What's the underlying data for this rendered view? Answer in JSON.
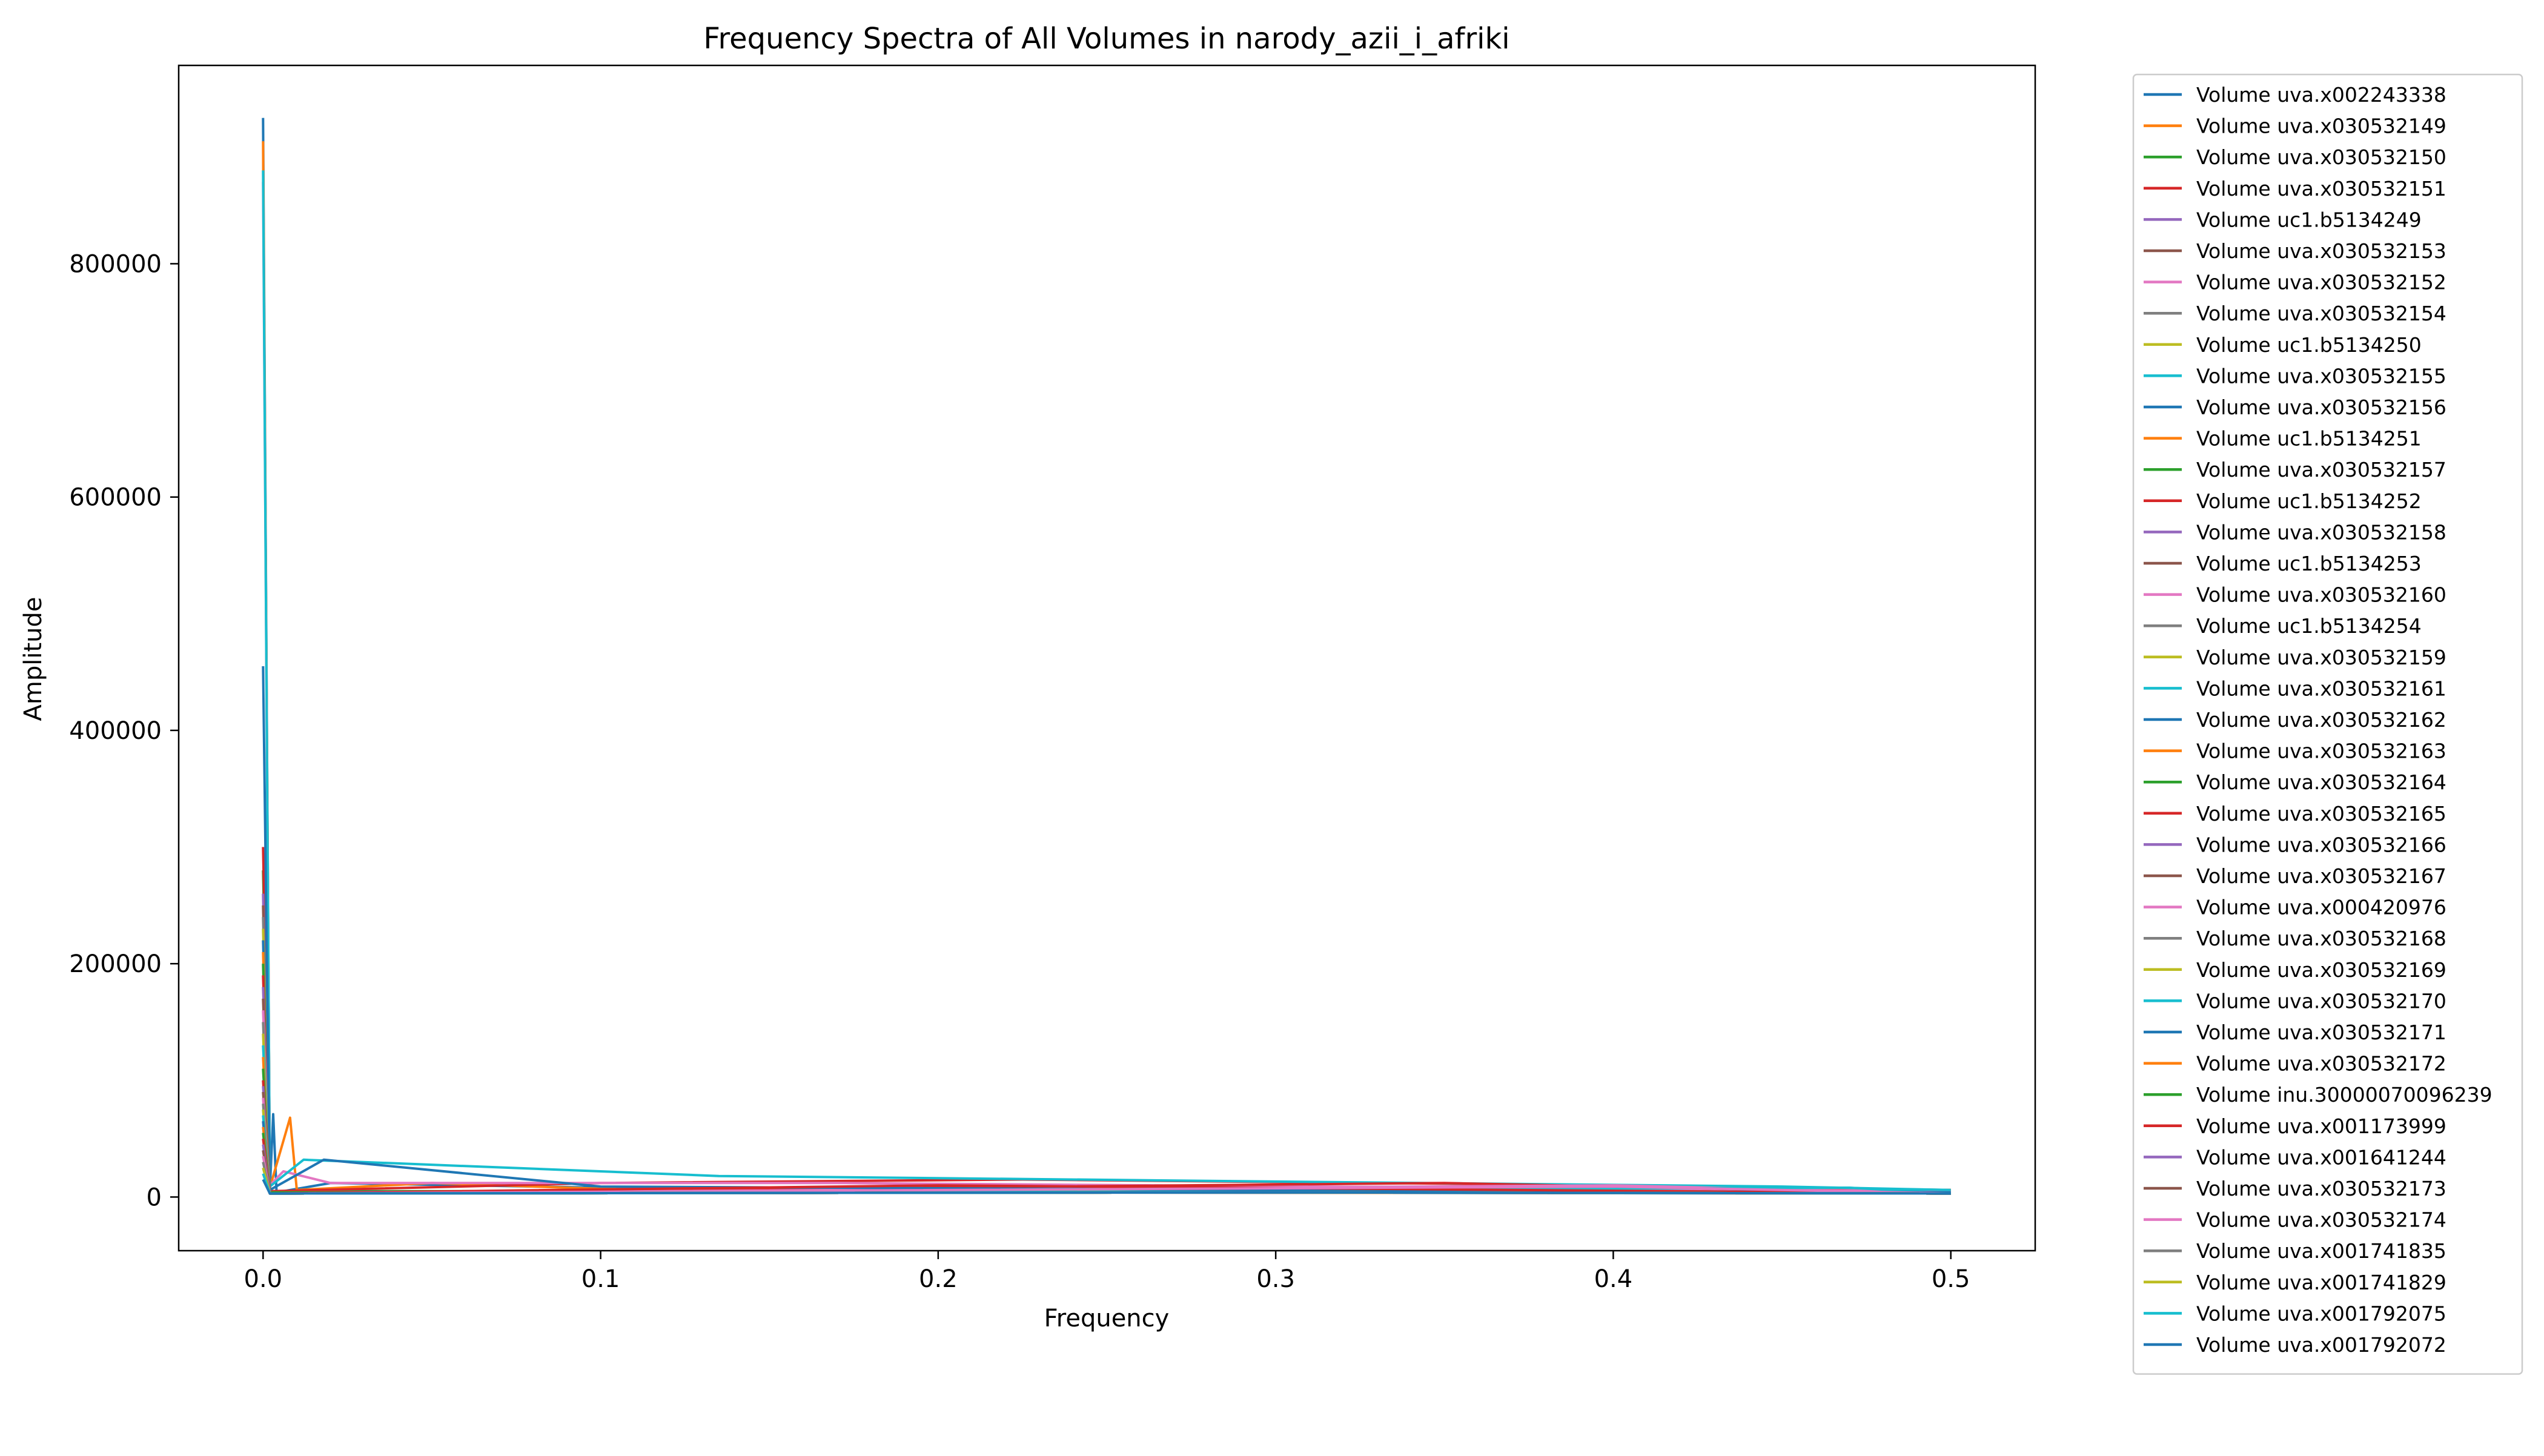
{
  "chart_data": {
    "type": "line",
    "title": "Frequency Spectra of All Volumes in narody_azii_i_afriki",
    "xlabel": "Frequency",
    "ylabel": "Amplitude",
    "xlim": [
      -0.025,
      0.525
    ],
    "ylim": [
      -46000,
      970000
    ],
    "xticks": [
      0.0,
      0.1,
      0.2,
      0.3,
      0.4,
      0.5
    ],
    "xtick_labels": [
      "0.0",
      "0.1",
      "0.2",
      "0.3",
      "0.4",
      "0.5"
    ],
    "yticks": [
      0,
      200000,
      400000,
      600000,
      800000
    ],
    "ytick_labels": [
      "0",
      "200000",
      "400000",
      "600000",
      "800000"
    ],
    "grid": false,
    "legend_position": "outside-right",
    "colors": [
      "#1f77b4",
      "#ff7f0e",
      "#2ca02c",
      "#d62728",
      "#9467bd",
      "#8c564b",
      "#e377c2",
      "#7f7f7f",
      "#bcbd22",
      "#17becf"
    ],
    "series": [
      {
        "name": "Volume uva.x002243338",
        "values": [
          [
            0,
            925000
          ],
          [
            0.002,
            6000
          ],
          [
            0.003,
            71000
          ],
          [
            0.004,
            4000
          ],
          [
            0.02,
            12000
          ],
          [
            0.1,
            8000
          ],
          [
            0.2,
            7000
          ],
          [
            0.3,
            6000
          ],
          [
            0.4,
            6000
          ],
          [
            0.5,
            5000
          ]
        ]
      },
      {
        "name": "Volume uva.x030532149",
        "values": [
          [
            0,
            905000
          ],
          [
            0.002,
            8000
          ],
          [
            0.008,
            68000
          ],
          [
            0.01,
            6000
          ],
          [
            0.05,
            12000
          ],
          [
            0.1,
            7000
          ],
          [
            0.3,
            6000
          ],
          [
            0.5,
            6000
          ]
        ]
      },
      {
        "name": "Volume uva.x030532150",
        "values": [
          [
            0,
            280000
          ],
          [
            0.002,
            5000
          ],
          [
            0.1,
            5000
          ],
          [
            0.3,
            4000
          ],
          [
            0.5,
            3000
          ]
        ]
      },
      {
        "name": "Volume uva.x030532151",
        "values": [
          [
            0,
            300000
          ],
          [
            0.002,
            5000
          ],
          [
            0.1,
            12000
          ],
          [
            0.225,
            15000
          ],
          [
            0.4,
            10000
          ],
          [
            0.5,
            6000
          ]
        ]
      },
      {
        "name": "Volume uc1.b5134249",
        "values": [
          [
            0,
            260000
          ],
          [
            0.002,
            4000
          ],
          [
            0.2,
            6000
          ],
          [
            0.5,
            4000
          ]
        ]
      },
      {
        "name": "Volume uva.x030532153",
        "values": [
          [
            0,
            250000
          ],
          [
            0.002,
            4000
          ],
          [
            0.3,
            5000
          ],
          [
            0.5,
            3000
          ]
        ]
      },
      {
        "name": "Volume uva.x030532152",
        "values": [
          [
            0,
            870000
          ],
          [
            0.002,
            10000
          ],
          [
            0.006,
            22000
          ],
          [
            0.02,
            12000
          ],
          [
            0.17,
            12000
          ],
          [
            0.5,
            5000
          ]
        ]
      },
      {
        "name": "Volume uva.x030532154",
        "values": [
          [
            0,
            240000
          ],
          [
            0.002,
            3000
          ],
          [
            0.2,
            4000
          ],
          [
            0.5,
            3000
          ]
        ]
      },
      {
        "name": "Volume uc1.b5134250",
        "values": [
          [
            0,
            230000
          ],
          [
            0.002,
            3000
          ],
          [
            0.3,
            4000
          ],
          [
            0.5,
            3000
          ]
        ]
      },
      {
        "name": "Volume uva.x030532155",
        "values": [
          [
            0,
            880000
          ],
          [
            0.002,
            9000
          ],
          [
            0.012,
            32000
          ],
          [
            0.135,
            18000
          ],
          [
            0.45,
            9000
          ],
          [
            0.5,
            6000
          ]
        ]
      },
      {
        "name": "Volume uva.x030532156",
        "values": [
          [
            0,
            220000
          ],
          [
            0.002,
            4000
          ],
          [
            0.2,
            5000
          ],
          [
            0.5,
            3000
          ]
        ]
      },
      {
        "name": "Volume uc1.b5134251",
        "values": [
          [
            0,
            210000
          ],
          [
            0.002,
            4000
          ],
          [
            0.25,
            5000
          ],
          [
            0.5,
            3000
          ]
        ]
      },
      {
        "name": "Volume uva.x030532157",
        "values": [
          [
            0,
            200000
          ],
          [
            0.002,
            4000
          ],
          [
            0.3,
            4000
          ],
          [
            0.5,
            3000
          ]
        ]
      },
      {
        "name": "Volume uc1.b5134252",
        "values": [
          [
            0,
            190000
          ],
          [
            0.002,
            3000
          ],
          [
            0.35,
            12000
          ],
          [
            0.5,
            3000
          ]
        ]
      },
      {
        "name": "Volume uva.x030532158",
        "values": [
          [
            0,
            180000
          ],
          [
            0.002,
            3000
          ],
          [
            0.2,
            4000
          ],
          [
            0.5,
            3000
          ]
        ]
      },
      {
        "name": "Volume uc1.b5134253",
        "values": [
          [
            0,
            170000
          ],
          [
            0.002,
            3000
          ],
          [
            0.3,
            4000
          ],
          [
            0.5,
            3000
          ]
        ]
      },
      {
        "name": "Volume uva.x030532160",
        "values": [
          [
            0,
            160000
          ],
          [
            0.002,
            3000
          ],
          [
            0.4,
            10000
          ],
          [
            0.5,
            3000
          ]
        ]
      },
      {
        "name": "Volume uc1.b5134254",
        "values": [
          [
            0,
            150000
          ],
          [
            0.002,
            3000
          ],
          [
            0.2,
            4000
          ],
          [
            0.5,
            3000
          ]
        ]
      },
      {
        "name": "Volume uva.x030532159",
        "values": [
          [
            0,
            140000
          ],
          [
            0.002,
            3000
          ],
          [
            0.3,
            4000
          ],
          [
            0.5,
            3000
          ]
        ]
      },
      {
        "name": "Volume uva.x030532161",
        "values": [
          [
            0,
            130000
          ],
          [
            0.002,
            3000
          ],
          [
            0.47,
            8000
          ],
          [
            0.5,
            3000
          ]
        ]
      },
      {
        "name": "Volume uva.x030532162",
        "values": [
          [
            0,
            455000
          ],
          [
            0.002,
            6000
          ],
          [
            0.018,
            32000
          ],
          [
            0.1,
            9000
          ],
          [
            0.3,
            6000
          ],
          [
            0.5,
            4000
          ]
        ]
      },
      {
        "name": "Volume uva.x030532163",
        "values": [
          [
            0,
            120000
          ],
          [
            0.002,
            3000
          ],
          [
            0.25,
            4000
          ],
          [
            0.5,
            3000
          ]
        ]
      },
      {
        "name": "Volume uva.x030532164",
        "values": [
          [
            0,
            110000
          ],
          [
            0.002,
            3000
          ],
          [
            0.3,
            4000
          ],
          [
            0.5,
            3000
          ]
        ]
      },
      {
        "name": "Volume uva.x030532165",
        "values": [
          [
            0,
            100000
          ],
          [
            0.002,
            3000
          ],
          [
            0.2,
            10000
          ],
          [
            0.5,
            3000
          ]
        ]
      },
      {
        "name": "Volume uva.x030532166",
        "values": [
          [
            0,
            95000
          ],
          [
            0.002,
            3000
          ],
          [
            0.3,
            4000
          ],
          [
            0.5,
            3000
          ]
        ]
      },
      {
        "name": "Volume uva.x030532167",
        "values": [
          [
            0,
            90000
          ],
          [
            0.002,
            3000
          ],
          [
            0.3,
            4000
          ],
          [
            0.5,
            3000
          ]
        ]
      },
      {
        "name": "Volume uva.x000420976",
        "values": [
          [
            0,
            85000
          ],
          [
            0.002,
            3000
          ],
          [
            0.4,
            9000
          ],
          [
            0.5,
            3000
          ]
        ]
      },
      {
        "name": "Volume uva.x030532168",
        "values": [
          [
            0,
            80000
          ],
          [
            0.002,
            3000
          ],
          [
            0.3,
            4000
          ],
          [
            0.5,
            3000
          ]
        ]
      },
      {
        "name": "Volume uva.x030532169",
        "values": [
          [
            0,
            75000
          ],
          [
            0.002,
            3000
          ],
          [
            0.3,
            4000
          ],
          [
            0.5,
            3000
          ]
        ]
      },
      {
        "name": "Volume uva.x030532170",
        "values": [
          [
            0,
            70000
          ],
          [
            0.002,
            3000
          ],
          [
            0.3,
            4000
          ],
          [
            0.5,
            3000
          ]
        ]
      },
      {
        "name": "Volume uva.x030532171",
        "values": [
          [
            0,
            65000
          ],
          [
            0.002,
            3000
          ],
          [
            0.3,
            4000
          ],
          [
            0.5,
            3000
          ]
        ]
      },
      {
        "name": "Volume uva.x030532172",
        "values": [
          [
            0,
            60000
          ],
          [
            0.002,
            3000
          ],
          [
            0.3,
            4000
          ],
          [
            0.5,
            3000
          ]
        ]
      },
      {
        "name": "Volume inu.30000070096239",
        "values": [
          [
            0,
            55000
          ],
          [
            0.002,
            3000
          ],
          [
            0.3,
            4000
          ],
          [
            0.5,
            3000
          ]
        ]
      },
      {
        "name": "Volume uva.x001173999",
        "values": [
          [
            0,
            50000
          ],
          [
            0.002,
            3000
          ],
          [
            0.3,
            4000
          ],
          [
            0.5,
            3000
          ]
        ]
      },
      {
        "name": "Volume uva.x001641244",
        "values": [
          [
            0,
            45000
          ],
          [
            0.002,
            3000
          ],
          [
            0.3,
            4000
          ],
          [
            0.5,
            3000
          ]
        ]
      },
      {
        "name": "Volume uva.x030532173",
        "values": [
          [
            0,
            40000
          ],
          [
            0.002,
            3000
          ],
          [
            0.3,
            4000
          ],
          [
            0.5,
            3000
          ]
        ]
      },
      {
        "name": "Volume uva.x030532174",
        "values": [
          [
            0,
            35000
          ],
          [
            0.002,
            3000
          ],
          [
            0.3,
            4000
          ],
          [
            0.5,
            3000
          ]
        ]
      },
      {
        "name": "Volume uva.x001741835",
        "values": [
          [
            0,
            30000
          ],
          [
            0.002,
            3000
          ],
          [
            0.3,
            4000
          ],
          [
            0.5,
            3000
          ]
        ]
      },
      {
        "name": "Volume uva.x001741829",
        "values": [
          [
            0,
            25000
          ],
          [
            0.002,
            3000
          ],
          [
            0.3,
            4000
          ],
          [
            0.5,
            3000
          ]
        ]
      },
      {
        "name": "Volume uva.x001792075",
        "values": [
          [
            0,
            20000
          ],
          [
            0.002,
            3000
          ],
          [
            0.3,
            4000
          ],
          [
            0.5,
            3000
          ]
        ]
      },
      {
        "name": "Volume uva.x001792072",
        "values": [
          [
            0,
            15000
          ],
          [
            0.002,
            3000
          ],
          [
            0.3,
            4000
          ],
          [
            0.5,
            3000
          ]
        ]
      }
    ]
  }
}
